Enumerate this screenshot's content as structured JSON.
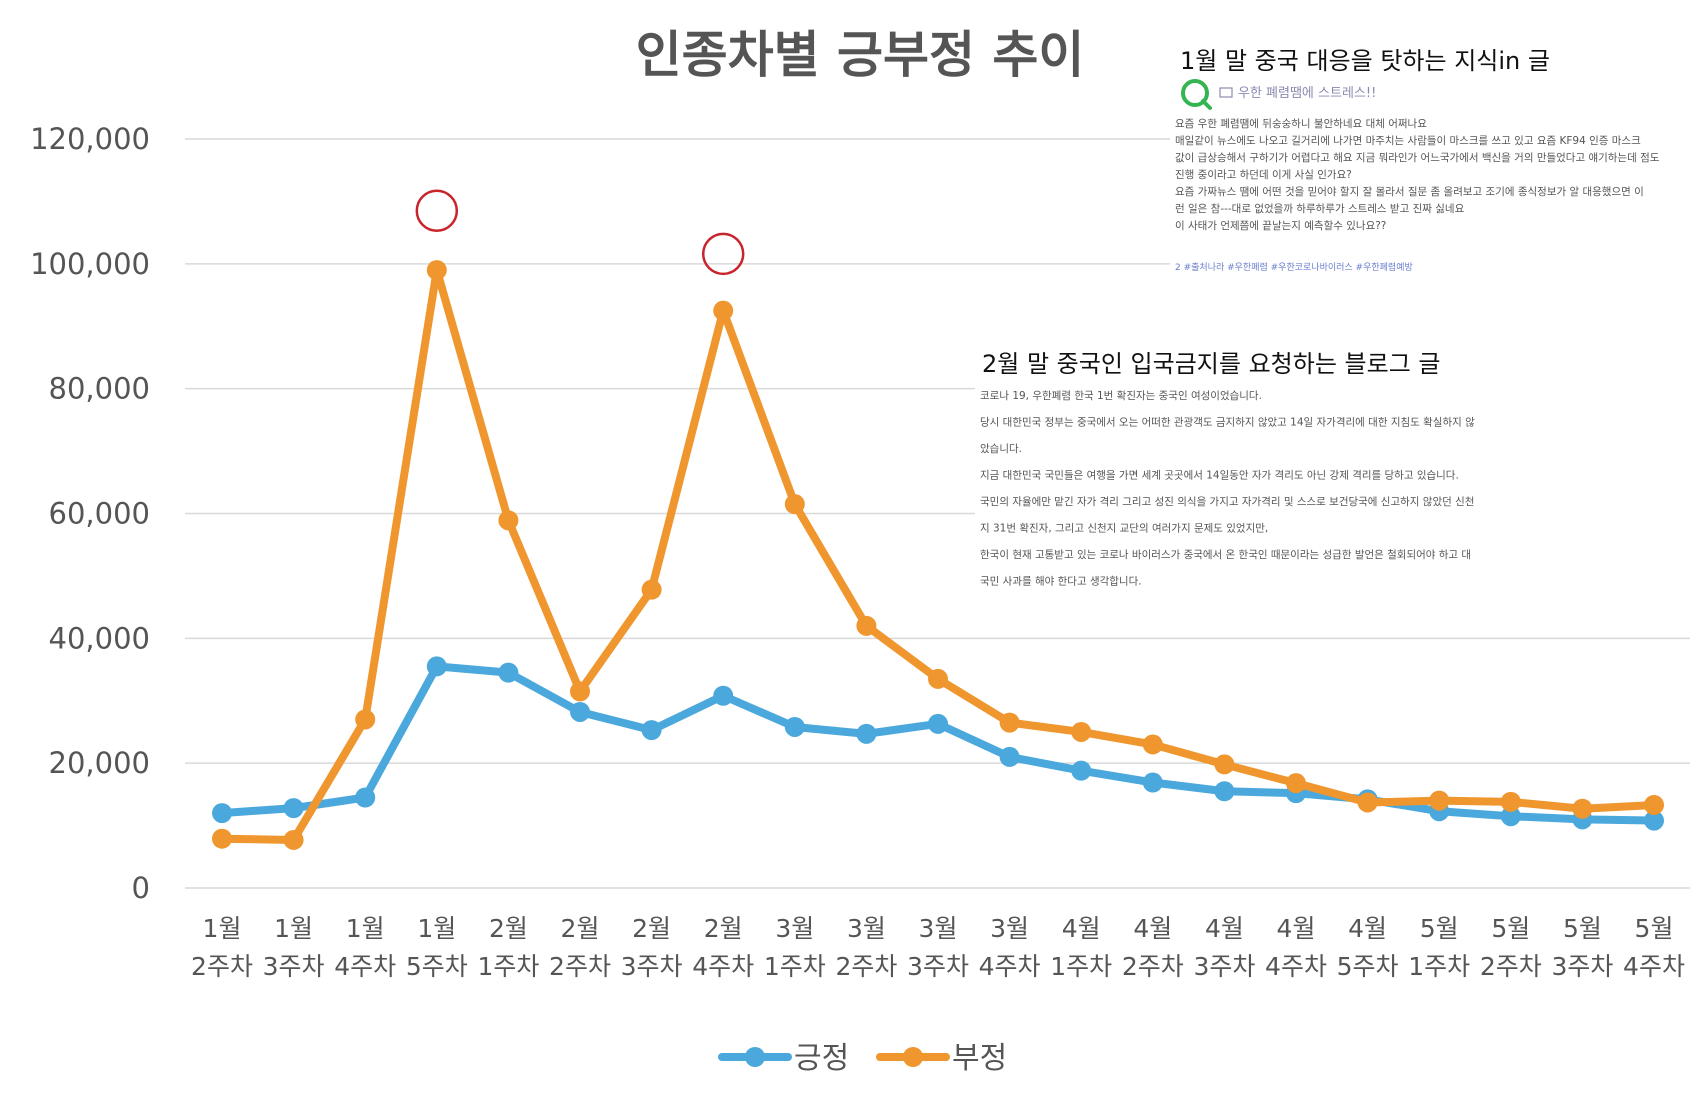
{
  "chart_data": {
    "type": "line",
    "title": "인종차별 긍부정 추이",
    "xlabel": "",
    "ylabel": "",
    "ylim": [
      0,
      120000
    ],
    "yticks": [
      "120,000",
      "100,000",
      "80,000",
      "60,000",
      "40,000",
      "20,000",
      "0"
    ],
    "ytick_values": [
      120000,
      100000,
      80000,
      60000,
      40000,
      20000,
      0
    ],
    "grid": true,
    "legend_position": "bottom",
    "categories": [
      [
        "1월",
        "2주차"
      ],
      [
        "1월",
        "3주차"
      ],
      [
        "1월",
        "4주차"
      ],
      [
        "1월",
        "5주차"
      ],
      [
        "2월",
        "1주차"
      ],
      [
        "2월",
        "2주차"
      ],
      [
        "2월",
        "3주차"
      ],
      [
        "2월",
        "4주차"
      ],
      [
        "3월",
        "1주차"
      ],
      [
        "3월",
        "2주차"
      ],
      [
        "3월",
        "3주차"
      ],
      [
        "3월",
        "4주차"
      ],
      [
        "4월",
        "1주차"
      ],
      [
        "4월",
        "2주차"
      ],
      [
        "4월",
        "3주차"
      ],
      [
        "4월",
        "4주차"
      ],
      [
        "4월",
        "5주차"
      ],
      [
        "5월",
        "1주차"
      ],
      [
        "5월",
        "2주차"
      ],
      [
        "5월",
        "3주차"
      ],
      [
        "5월",
        "4주차"
      ]
    ],
    "series": [
      {
        "name": "긍정",
        "color": "#4ba8dc",
        "values": [
          12000,
          12800,
          14500,
          35500,
          34500,
          28200,
          25300,
          30800,
          25800,
          24700,
          26300,
          21000,
          18800,
          16900,
          15500,
          15200,
          14200,
          12300,
          11500,
          11000,
          10800
        ]
      },
      {
        "name": "부정",
        "color": "#f0962e",
        "values": [
          7900,
          7700,
          27000,
          99000,
          58900,
          31500,
          47800,
          92500,
          61500,
          42000,
          33500,
          26500,
          25000,
          23000,
          19800,
          16800,
          13700,
          14000,
          13800,
          12700,
          13300
        ]
      }
    ],
    "highlight_circles": [
      {
        "category_index": 3,
        "value": 108500,
        "color": "#c8242b"
      },
      {
        "category_index": 7,
        "value": 101600,
        "color": "#c8242b"
      }
    ],
    "annotations": [
      {
        "heading": "1월 말 중국 대응을 탓하는 지식in 글",
        "subtitle": "우한 폐렴땜에 스트레스!!",
        "lines": [
          "요즘 우한 폐렴땜에 뒤숭숭하니 불안하네요 대체 어쩌나요",
          "매일같이 뉴스에도 나오고 길거리에 나가면 마주치는 사람들이 마스크를 쓰고 있고 요즘 KF94 인증 마스크",
          "값이 급상승해서 구하기가 어렵다고 해요 지금 뭐라인가 어느국가에서 백신을 거의 만들었다고 얘기하는데 점도",
          "진행 중이라고 하던데 이게 사실 인가요?",
          "요즘 가짜뉴스 땜에 어떤 것을 믿어야 할지 잘 몰라서 질문 좀 올려보고 조기에 종식정보가 알 대응했으면 이",
          "런 일은 참---대로 없었을까 하루하루가 스트레스 받고 진짜 싫네요",
          "이 사태가 언제쯤에 끝날는지 예측할수 있나요??"
        ],
        "tags": "2 #출처나라   #우한폐렴   #우한코로나바이러스   #우한폐렴예방"
      },
      {
        "heading": "2월 말 중국인 입국금지를 요청하는 블로그 글",
        "lines": [
          "코로나 19, 우한폐렴 한국 1번 확진자는 중국인 여성이었습니다.",
          "당시 대한민국 정부는 중국에서 오는 어떠한 관광객도 금지하지 않았고 14일 자가격리에 대한 지침도 확실하지 않",
          "았습니다.",
          "지금 대한민국 국민들은 여행을 가면 세계 곳곳에서 14일동안 자가 격리도 아닌 강제 격리를 당하고 있습니다.",
          "국민의 자율에만 맡긴 자가 격리 그리고 성진 의식을 가지고 자가격리 및 스스로 보건당국에 신고하지 않았던 신천",
          "지 31번 확진자, 그리고 신천지 교단의 여러가지 문제도 있었지만,",
          "한국이 현재 고통받고 있는 코로나 바이러스가 중국에서 온 한국인 때문이라는 성급한 발언은 철회되어야 하고 대",
          "국민 사과를 해야 한다고 생각합니다."
        ]
      }
    ]
  }
}
